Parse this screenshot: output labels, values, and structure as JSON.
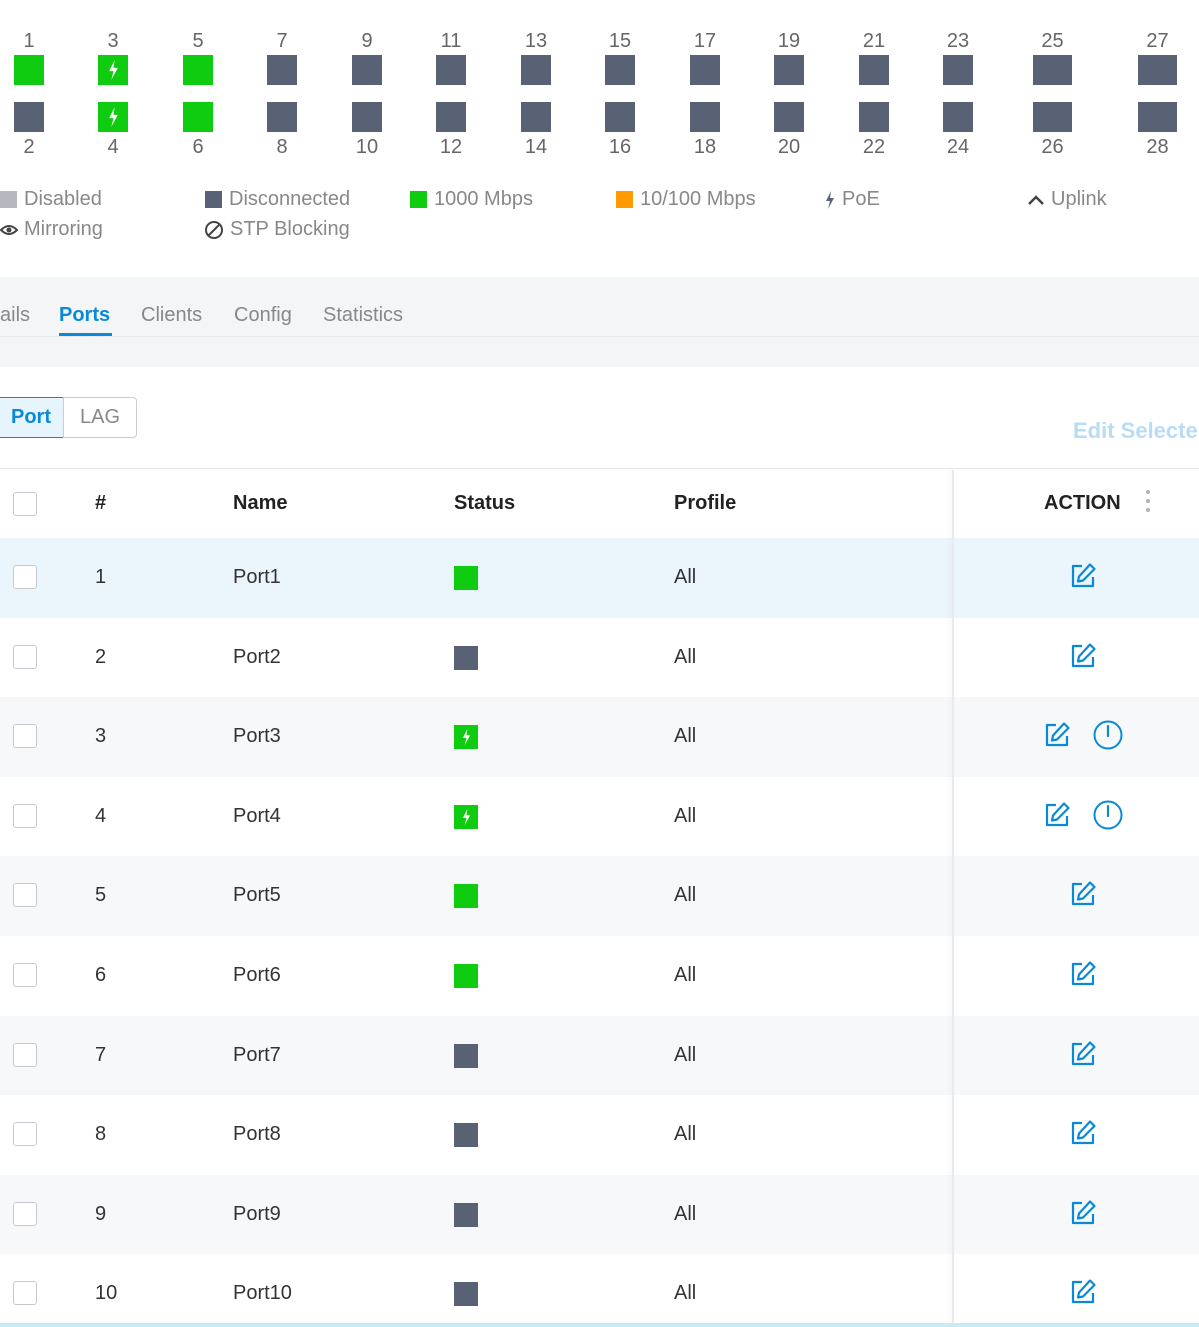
{
  "colors": {
    "connected_1000": "#10cc10",
    "disconnected": "#596275",
    "disabled": "#b5b9bf",
    "speed_10_100": "#ff9a00",
    "accent": "#0a8ad6"
  },
  "ports_top": [
    {
      "num": "1",
      "state": "connected",
      "poe": false
    },
    {
      "num": "3",
      "state": "connected",
      "poe": true
    },
    {
      "num": "5",
      "state": "connected",
      "poe": false
    },
    {
      "num": "7",
      "state": "disconnected",
      "poe": false
    },
    {
      "num": "9",
      "state": "disconnected",
      "poe": false
    },
    {
      "num": "11",
      "state": "disconnected",
      "poe": false
    },
    {
      "num": "13",
      "state": "disconnected",
      "poe": false
    },
    {
      "num": "15",
      "state": "disconnected",
      "poe": false
    },
    {
      "num": "17",
      "state": "disconnected",
      "poe": false
    },
    {
      "num": "19",
      "state": "disconnected",
      "poe": false
    },
    {
      "num": "21",
      "state": "disconnected",
      "poe": false
    },
    {
      "num": "23",
      "state": "disconnected",
      "poe": false
    },
    {
      "num": "25",
      "state": "disconnected",
      "poe": false
    },
    {
      "num": "27",
      "state": "disconnected",
      "poe": false
    }
  ],
  "ports_bottom": [
    {
      "num": "2",
      "state": "disconnected",
      "poe": false
    },
    {
      "num": "4",
      "state": "connected",
      "poe": true
    },
    {
      "num": "6",
      "state": "connected",
      "poe": false
    },
    {
      "num": "8",
      "state": "disconnected",
      "poe": false
    },
    {
      "num": "10",
      "state": "disconnected",
      "poe": false
    },
    {
      "num": "12",
      "state": "disconnected",
      "poe": false
    },
    {
      "num": "14",
      "state": "disconnected",
      "poe": false
    },
    {
      "num": "16",
      "state": "disconnected",
      "poe": false
    },
    {
      "num": "18",
      "state": "disconnected",
      "poe": false
    },
    {
      "num": "20",
      "state": "disconnected",
      "poe": false
    },
    {
      "num": "22",
      "state": "disconnected",
      "poe": false
    },
    {
      "num": "24",
      "state": "disconnected",
      "poe": false
    },
    {
      "num": "26",
      "state": "disconnected",
      "poe": false
    },
    {
      "num": "28",
      "state": "disconnected",
      "poe": false
    }
  ],
  "legend": {
    "disabled": "Disabled",
    "disconnected": "Disconnected",
    "speed_1000": "1000 Mbps",
    "speed_10_100": "10/100 Mbps",
    "poe": "PoE",
    "uplink": "Uplink",
    "mirroring": "Mirroring",
    "stp_blocking": "STP Blocking"
  },
  "tabs": [
    {
      "label": "ails",
      "active": false
    },
    {
      "label": "Ports",
      "active": true
    },
    {
      "label": "Clients",
      "active": false
    },
    {
      "label": "Config",
      "active": false
    },
    {
      "label": "Statistics",
      "active": false
    }
  ],
  "segmented": {
    "port": "Port",
    "lag": "LAG"
  },
  "edit_selected": "Edit Selecte",
  "table": {
    "headers": {
      "num": "#",
      "name": "Name",
      "status": "Status",
      "profile": "Profile",
      "action": "ACTION"
    },
    "rows": [
      {
        "num": "1",
        "name": "Port1",
        "status": "connected",
        "poe": false,
        "profile": "All",
        "power": false,
        "highlight": true
      },
      {
        "num": "2",
        "name": "Port2",
        "status": "disconnected",
        "poe": false,
        "profile": "All",
        "power": false,
        "highlight": false
      },
      {
        "num": "3",
        "name": "Port3",
        "status": "connected",
        "poe": true,
        "profile": "All",
        "power": true,
        "highlight": false
      },
      {
        "num": "4",
        "name": "Port4",
        "status": "connected",
        "poe": true,
        "profile": "All",
        "power": true,
        "highlight": false
      },
      {
        "num": "5",
        "name": "Port5",
        "status": "connected",
        "poe": false,
        "profile": "All",
        "power": false,
        "highlight": false
      },
      {
        "num": "6",
        "name": "Port6",
        "status": "connected",
        "poe": false,
        "profile": "All",
        "power": false,
        "highlight": false
      },
      {
        "num": "7",
        "name": "Port7",
        "status": "disconnected",
        "poe": false,
        "profile": "All",
        "power": false,
        "highlight": false
      },
      {
        "num": "8",
        "name": "Port8",
        "status": "disconnected",
        "poe": false,
        "profile": "All",
        "power": false,
        "highlight": false
      },
      {
        "num": "9",
        "name": "Port9",
        "status": "disconnected",
        "poe": false,
        "profile": "All",
        "power": false,
        "highlight": false
      },
      {
        "num": "10",
        "name": "Port10",
        "status": "disconnected",
        "poe": false,
        "profile": "All",
        "power": false,
        "highlight": false
      }
    ]
  }
}
